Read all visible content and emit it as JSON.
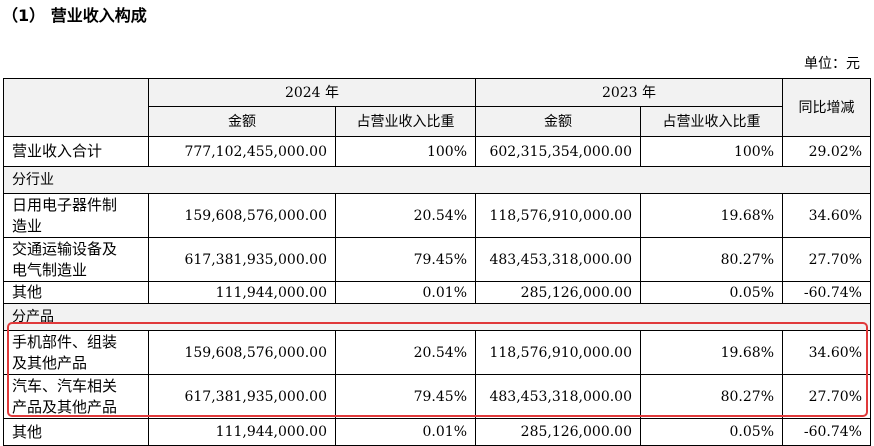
{
  "title": "（1） 营业收入构成",
  "unit": "单位：元",
  "table": {
    "header": {
      "years": [
        "2024 年",
        "2023 年"
      ],
      "yoy": "同比增减",
      "columns": [
        "金额",
        "占营业收入比重",
        "金额",
        "占营业收入比重"
      ]
    },
    "rows": [
      [
        "营业收入合计",
        "777,102,455,000.00",
        "100%",
        "602,315,354,000.00",
        "100%",
        "29.02%"
      ],
      [
        "分行业"
      ],
      [
        "日用电子器件制造业",
        "159,608,576,000.00",
        "20.54%",
        "118,576,910,000.00",
        "19.68%",
        "34.60%"
      ],
      [
        "交通运输设备及电气制造业",
        "617,381,935,000.00",
        "79.45%",
        "483,453,318,000.00",
        "80.27%",
        "27.70%"
      ],
      [
        "其他",
        "111,944,000.00",
        "0.01%",
        "285,126,000.00",
        "0.05%",
        "-60.74%"
      ],
      [
        "分产品"
      ],
      [
        "手机部件、组装及其他产品",
        "159,608,576,000.00",
        "20.54%",
        "118,576,910,000.00",
        "19.68%",
        "34.60%"
      ],
      [
        "汽车、汽车相关产品及其他产品",
        "617,381,935,000.00",
        "79.45%",
        "483,453,318,000.00",
        "80.27%",
        "27.70%"
      ],
      [
        "其他",
        "111,944,000.00",
        "0.01%",
        "285,126,000.00",
        "0.05%",
        "-60.74%"
      ]
    ]
  }
}
